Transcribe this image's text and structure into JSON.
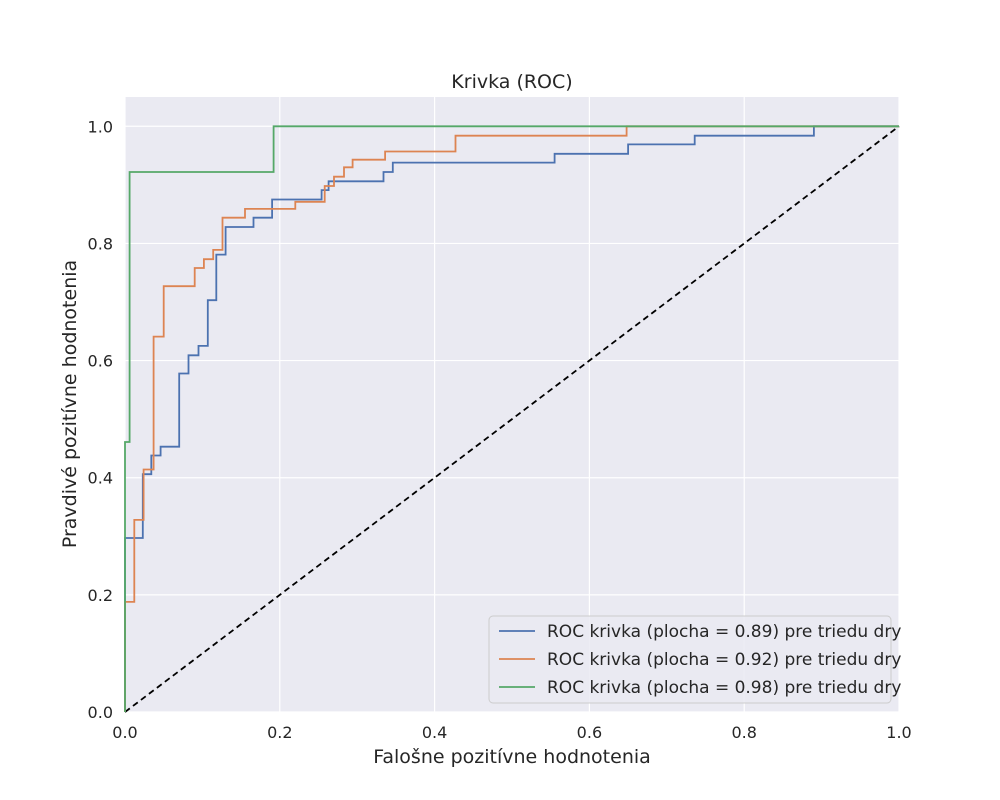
{
  "chart_data": {
    "type": "line",
    "title": "Krivka (ROC)",
    "xlabel": "Falošne pozitívne hodnotenia",
    "ylabel": "Pravdivé pozitívne hodnotenia",
    "xlim": [
      0.0,
      1.0
    ],
    "ylim": [
      0.0,
      1.05
    ],
    "xticks": [
      "0.0",
      "0.2",
      "0.4",
      "0.6",
      "0.8",
      "1.0"
    ],
    "yticks": [
      "0.0",
      "0.2",
      "0.4",
      "0.6",
      "0.8",
      "1.0"
    ],
    "grid": true,
    "legend_position": "lower-right",
    "series": [
      {
        "name": "ROC krivka (plocha = 0.89) pre triedu dry",
        "color": "#4c72b0",
        "step": true,
        "points": [
          [
            0.0,
            0.0
          ],
          [
            0.0,
            0.297
          ],
          [
            0.023,
            0.297
          ],
          [
            0.023,
            0.406
          ],
          [
            0.034,
            0.406
          ],
          [
            0.034,
            0.438
          ],
          [
            0.046,
            0.438
          ],
          [
            0.046,
            0.453
          ],
          [
            0.07,
            0.453
          ],
          [
            0.07,
            0.578
          ],
          [
            0.082,
            0.578
          ],
          [
            0.082,
            0.609
          ],
          [
            0.095,
            0.609
          ],
          [
            0.095,
            0.625
          ],
          [
            0.107,
            0.625
          ],
          [
            0.107,
            0.703
          ],
          [
            0.118,
            0.703
          ],
          [
            0.118,
            0.781
          ],
          [
            0.13,
            0.781
          ],
          [
            0.13,
            0.828
          ],
          [
            0.166,
            0.828
          ],
          [
            0.166,
            0.844
          ],
          [
            0.19,
            0.844
          ],
          [
            0.19,
            0.875
          ],
          [
            0.254,
            0.875
          ],
          [
            0.254,
            0.891
          ],
          [
            0.263,
            0.891
          ],
          [
            0.263,
            0.906
          ],
          [
            0.334,
            0.906
          ],
          [
            0.334,
            0.922
          ],
          [
            0.346,
            0.922
          ],
          [
            0.346,
            0.938
          ],
          [
            0.555,
            0.938
          ],
          [
            0.555,
            0.953
          ],
          [
            0.65,
            0.953
          ],
          [
            0.65,
            0.969
          ],
          [
            0.736,
            0.969
          ],
          [
            0.736,
            0.984
          ],
          [
            0.89,
            0.984
          ],
          [
            0.89,
            1.0
          ],
          [
            1.0,
            1.0
          ]
        ]
      },
      {
        "name": "ROC krivka (plocha = 0.92) pre triedu dry",
        "color": "#dd8452",
        "step": true,
        "points": [
          [
            0.0,
            0.0
          ],
          [
            0.0,
            0.188
          ],
          [
            0.012,
            0.188
          ],
          [
            0.012,
            0.328
          ],
          [
            0.024,
            0.328
          ],
          [
            0.024,
            0.414
          ],
          [
            0.037,
            0.414
          ],
          [
            0.037,
            0.641
          ],
          [
            0.05,
            0.641
          ],
          [
            0.05,
            0.727
          ],
          [
            0.09,
            0.727
          ],
          [
            0.09,
            0.758
          ],
          [
            0.102,
            0.758
          ],
          [
            0.102,
            0.773
          ],
          [
            0.114,
            0.773
          ],
          [
            0.114,
            0.789
          ],
          [
            0.126,
            0.789
          ],
          [
            0.126,
            0.844
          ],
          [
            0.155,
            0.844
          ],
          [
            0.155,
            0.859
          ],
          [
            0.22,
            0.859
          ],
          [
            0.22,
            0.871
          ],
          [
            0.258,
            0.871
          ],
          [
            0.258,
            0.898
          ],
          [
            0.27,
            0.898
          ],
          [
            0.27,
            0.914
          ],
          [
            0.283,
            0.914
          ],
          [
            0.283,
            0.93
          ],
          [
            0.294,
            0.93
          ],
          [
            0.294,
            0.943
          ],
          [
            0.336,
            0.943
          ],
          [
            0.336,
            0.957
          ],
          [
            0.427,
            0.957
          ],
          [
            0.427,
            0.984
          ],
          [
            0.648,
            0.984
          ],
          [
            0.648,
            1.0
          ],
          [
            1.0,
            1.0
          ]
        ]
      },
      {
        "name": "ROC krivka (plocha = 0.98) pre triedu dry",
        "color": "#55a868",
        "step": true,
        "points": [
          [
            0.0,
            0.0
          ],
          [
            0.0,
            0.461
          ],
          [
            0.006,
            0.461
          ],
          [
            0.006,
            0.922
          ],
          [
            0.192,
            0.922
          ],
          [
            0.192,
            1.0
          ],
          [
            1.0,
            1.0
          ]
        ]
      }
    ],
    "reference_line": {
      "style": "dashed",
      "color": "#000000",
      "points": [
        [
          0.0,
          0.0
        ],
        [
          1.0,
          1.0
        ]
      ]
    }
  }
}
